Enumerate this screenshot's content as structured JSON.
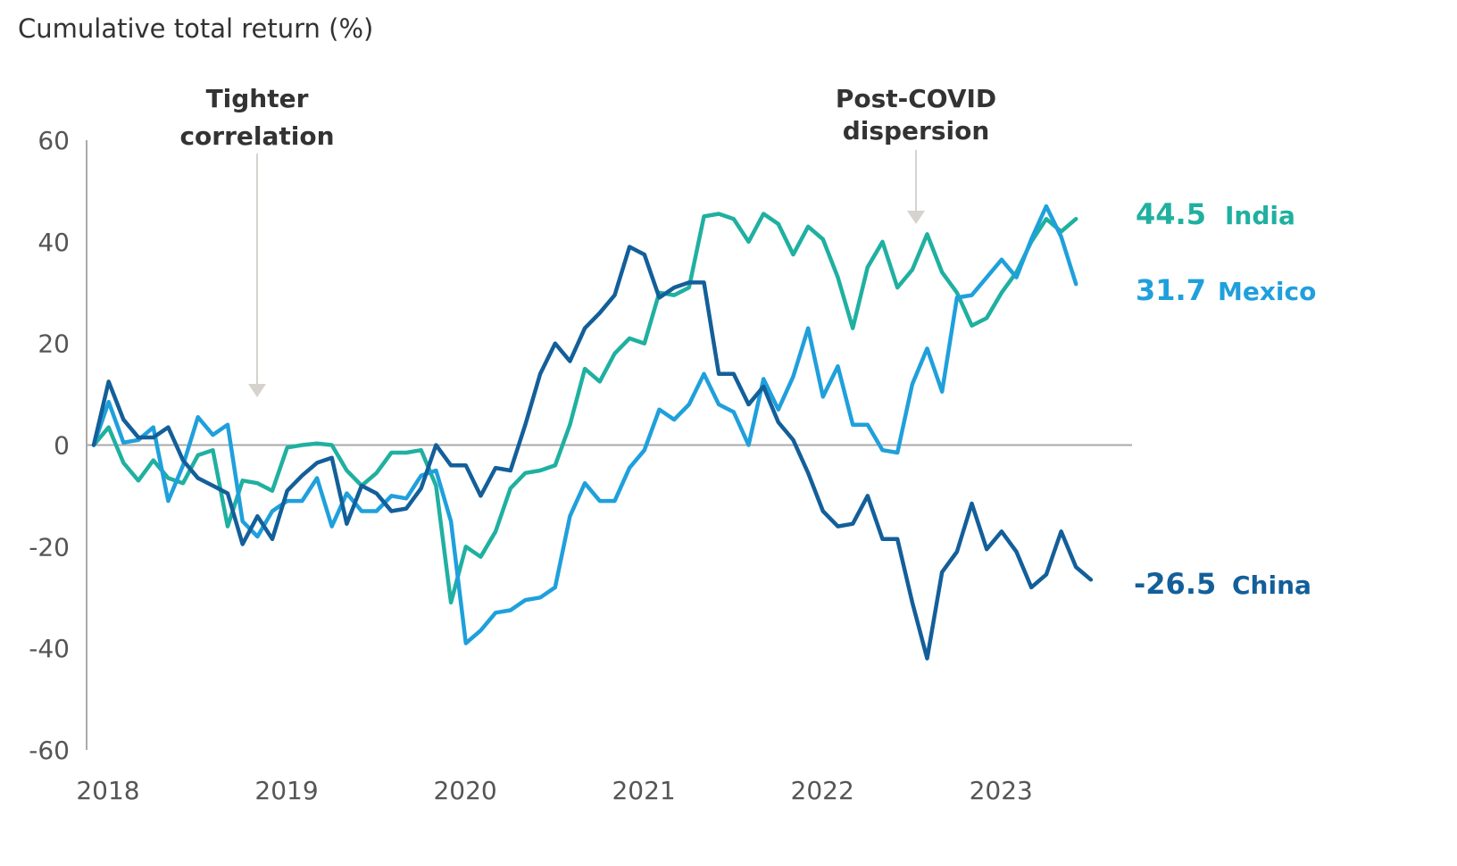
{
  "chart_data": {
    "type": "line",
    "title": "Cumulative total return (%)",
    "xlabel": "",
    "ylabel": "Cumulative total return (%)",
    "ylim": [
      -60,
      60
    ],
    "yticks": [
      "60",
      "40",
      "20",
      "0",
      "-20",
      "-40",
      "-60"
    ],
    "ytick_values": [
      60,
      40,
      20,
      0,
      -20,
      -40,
      -60
    ],
    "xticks": [
      "2018",
      "2019",
      "2020",
      "2021",
      "2022",
      "2023"
    ],
    "x_start": "2018-01",
    "x_step": "month",
    "grid": false,
    "zero_line": true,
    "annotations": [
      {
        "id": "tighter",
        "lines": [
          "Tighter",
          "correlation"
        ],
        "x_month_index": 11
      },
      {
        "id": "postcovid",
        "lines": [
          "Post-COVID",
          "dispersion"
        ],
        "x_month_index": 55
      }
    ],
    "series": [
      {
        "name": "India",
        "color": "#1fb0a0",
        "end_label": "44.5",
        "values": [
          0,
          3.5,
          -3.5,
          -7,
          -3,
          -6.5,
          -7.5,
          -2,
          -1,
          -16,
          -7,
          -7.5,
          -9,
          -0.5,
          0,
          0.3,
          0,
          -5,
          -8,
          -5.5,
          -1.5,
          -1.5,
          -1,
          -8,
          -31,
          -20,
          -22,
          -17,
          -8.5,
          -5.5,
          -5,
          -4,
          4,
          15,
          12.5,
          18,
          21,
          20,
          30,
          29.5,
          31,
          45,
          45.5,
          44.5,
          40,
          45.5,
          43.5,
          37.5,
          43,
          40.5,
          33,
          23,
          35,
          40,
          31,
          34.5,
          41.5,
          34,
          30,
          23.5,
          25,
          30,
          34,
          40,
          44.5,
          42,
          44.5
        ]
      },
      {
        "name": "Mexico",
        "color": "#1fa0dc",
        "end_label": "31.7",
        "values": [
          0,
          8.5,
          0.5,
          1,
          3.5,
          -11,
          -4,
          5.5,
          2,
          4,
          -15,
          -18,
          -13,
          -11,
          -11,
          -6.5,
          -16,
          -9.5,
          -13,
          -13,
          -10,
          -10.5,
          -6,
          -5,
          -15,
          -39,
          -36.5,
          -33,
          -32.5,
          -30.5,
          -30,
          -28,
          -14,
          -7.5,
          -11,
          -11,
          -4.5,
          -1,
          7,
          5,
          8,
          14,
          8,
          6.5,
          0,
          13,
          7,
          13.5,
          23,
          9.5,
          15.5,
          4,
          4,
          -1,
          -1.5,
          12,
          19,
          10.5,
          29,
          29.5,
          33,
          36.5,
          33,
          40.5,
          47,
          41,
          31.7
        ]
      },
      {
        "name": "China",
        "color": "#135f9a",
        "end_label": "-26.5",
        "values": [
          0,
          12.5,
          5,
          1.5,
          1.5,
          3.5,
          -3,
          -6.5,
          -8,
          -9.5,
          -19.5,
          -14,
          -18.5,
          -9,
          -6,
          -3.5,
          -2.5,
          -15.5,
          -8,
          -9.5,
          -13,
          -12.5,
          -8.5,
          0,
          -4,
          -4,
          -10,
          -4.5,
          -5,
          4,
          14,
          20,
          16.5,
          23,
          26,
          29.5,
          39,
          37.5,
          29,
          31,
          32,
          32,
          14,
          14,
          8,
          11.5,
          4.5,
          1,
          -5.5,
          -13,
          -16,
          -15.5,
          -10,
          -18.5,
          -18.5,
          -31,
          -42,
          -25,
          -21,
          -11.5,
          -20.5,
          -17,
          -21,
          -28,
          -25.5,
          -17,
          -24,
          -26.5
        ]
      }
    ]
  }
}
